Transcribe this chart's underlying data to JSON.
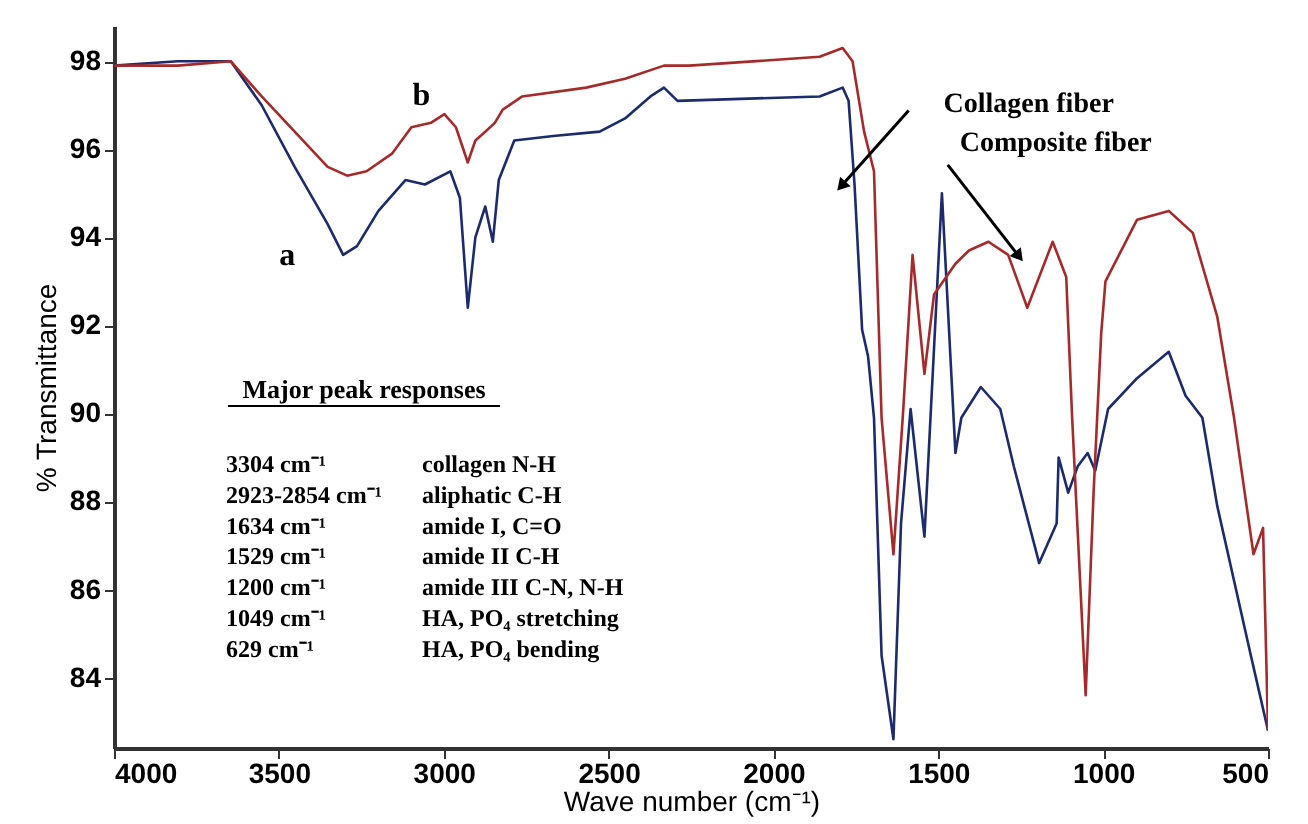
{
  "chart_data": {
    "type": "line",
    "xlabel": "Wave number (cm⁻¹)",
    "ylabel": "% Transmittance",
    "xlim": [
      4000,
      500
    ],
    "xticks": [
      4000,
      3500,
      3000,
      2500,
      2000,
      1500,
      1000,
      500
    ],
    "ylim": [
      82.4,
      98.8
    ],
    "yticks": [
      84,
      86,
      88,
      90,
      92,
      94,
      96,
      98
    ],
    "grid": false,
    "line_style": "solid",
    "series": [
      {
        "name": "a",
        "color": "#1c2a6e",
        "x": [
          4000,
          3806,
          3646,
          3552,
          3452,
          3352,
          3305,
          3263,
          3198,
          3116,
          3057,
          2980,
          2951,
          2927,
          2904,
          2874,
          2851,
          2833,
          2786,
          2668,
          2527,
          2450,
          2373,
          2332,
          2291,
          1860,
          1790,
          1772,
          1754,
          1731,
          1713,
          1695,
          1672,
          1636,
          1613,
          1584,
          1542,
          1489,
          1448,
          1430,
          1371,
          1312,
          1271,
          1194,
          1141,
          1135,
          1106,
          1077,
          1047,
          1024,
          985,
          897,
          801,
          750,
          699,
          654,
          552,
          500
        ],
        "values": [
          97.9,
          98.0,
          98.0,
          97.0,
          95.6,
          94.3,
          93.6,
          93.8,
          94.6,
          95.3,
          95.2,
          95.5,
          94.9,
          92.4,
          94.0,
          94.7,
          93.9,
          95.3,
          96.2,
          96.3,
          96.4,
          96.7,
          97.2,
          97.4,
          97.1,
          97.2,
          97.4,
          97.1,
          95.2,
          91.9,
          91.3,
          89.9,
          84.5,
          82.6,
          87.5,
          90.1,
          87.2,
          95.0,
          89.1,
          89.9,
          90.6,
          90.1,
          88.8,
          86.6,
          87.5,
          89.0,
          88.2,
          88.8,
          89.1,
          88.7,
          90.1,
          90.8,
          91.4,
          90.4,
          89.9,
          87.9,
          84.5,
          82.8
        ]
      },
      {
        "name": "b",
        "color": "#a52a2a",
        "x": [
          4000,
          3806,
          3646,
          3552,
          3452,
          3352,
          3293,
          3234,
          3157,
          3098,
          3039,
          2998,
          2963,
          2927,
          2904,
          2874,
          2845,
          2821,
          2762,
          2568,
          2450,
          2332,
          2255,
          1860,
          1790,
          1760,
          1725,
          1695,
          1672,
          1636,
          1607,
          1578,
          1542,
          1513,
          1448,
          1407,
          1348,
          1288,
          1230,
          1153,
          1112,
          1094,
          1053,
          1029,
          1006,
          993,
          897,
          801,
          728,
          654,
          603,
          544,
          515,
          500
        ],
        "values": [
          97.9,
          97.9,
          98.0,
          97.2,
          96.4,
          95.6,
          95.4,
          95.5,
          95.9,
          96.5,
          96.6,
          96.8,
          96.5,
          95.7,
          96.2,
          96.4,
          96.6,
          96.9,
          97.2,
          97.4,
          97.6,
          97.9,
          97.9,
          98.1,
          98.3,
          98.0,
          96.4,
          95.5,
          89.9,
          86.8,
          90.0,
          93.6,
          90.9,
          92.7,
          93.4,
          93.7,
          93.9,
          93.6,
          92.4,
          93.9,
          93.1,
          89.9,
          83.6,
          88.2,
          91.8,
          93.0,
          94.4,
          94.6,
          94.1,
          92.2,
          89.9,
          86.8,
          87.4,
          82.8
        ]
      }
    ],
    "annotations": [
      "Major peak responses",
      "3304 cm⁻¹",
      "collagen N-H",
      "2923-2854 cm⁻¹",
      "aliphatic C-H",
      "1634 cm⁻¹",
      "amide I, C=O",
      "1529 cm⁻¹",
      "amide II C-H",
      "1200 cm⁻¹",
      "amide III C-N, N-H",
      "1049 cm⁻¹",
      "HA, PO₄ stretching",
      "629 cm⁻¹",
      "HA, PO₄ bending",
      {
        "text": "Collagen fiber",
        "x": 1790,
        "y": 95.2
      },
      {
        "text": "Composite fiber",
        "x": 1259,
        "y": 93.6
      }
    ]
  }
}
